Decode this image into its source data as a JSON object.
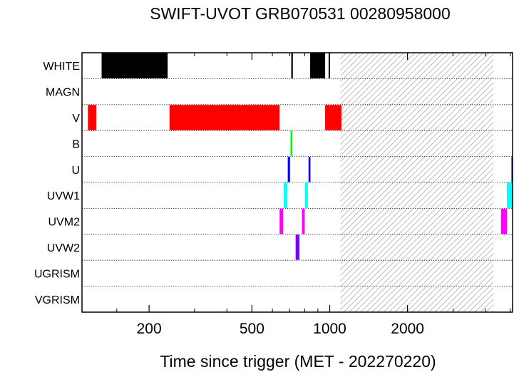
{
  "chart_data": {
    "type": "bar",
    "title": "SWIFT-UVOT GRB070531 00280958000",
    "xlabel": "Time since trigger (MET - 202270220)",
    "ylabel": "",
    "x_scale": "log",
    "xlim": [
      110,
      5100
    ],
    "x_ticks": [
      {
        "value": 200,
        "label": "200"
      },
      {
        "value": 500,
        "label": "500"
      },
      {
        "value": 1000,
        "label": "1000"
      },
      {
        "value": 2000,
        "label": "2000"
      }
    ],
    "x_minor_ticks": [
      150,
      300,
      400,
      600,
      700,
      800,
      900,
      3000,
      4000,
      5000
    ],
    "categories": [
      "WHITE",
      "MAGN",
      "V",
      "B",
      "U",
      "UVW1",
      "UVM2",
      "UVW2",
      "UGRISM",
      "VGRISM"
    ],
    "grid": "dotted horizontal separators",
    "shaded_region": {
      "x_start": 1100,
      "x_end": 4300,
      "pattern": "diagonal hatch",
      "color": "#b0b0b0"
    },
    "series": [
      {
        "filter": "WHITE",
        "color": "#000000",
        "intervals": [
          [
            131,
            236
          ],
          [
            710,
            720
          ],
          [
            840,
            960
          ],
          [
            990,
            1000
          ]
        ]
      },
      {
        "filter": "V",
        "color": "#ff0000",
        "intervals": [
          [
            116,
            125
          ],
          [
            240,
            640
          ],
          [
            960,
            1110
          ]
        ]
      },
      {
        "filter": "B",
        "color": "#00ff00",
        "intervals": [
          [
            705,
            717
          ]
        ]
      },
      {
        "filter": "U",
        "color": "#0000ff",
        "intervals": [
          [
            688,
            702
          ],
          [
            828,
            842
          ],
          [
            5050,
            5100
          ]
        ]
      },
      {
        "filter": "UVW1",
        "color": "#00ffff",
        "intervals": [
          [
            664,
            684
          ],
          [
            803,
            823
          ],
          [
            4850,
            5080
          ]
        ]
      },
      {
        "filter": "UVM2",
        "color": "#ff00ff",
        "intervals": [
          [
            640,
            660
          ],
          [
            781,
            800
          ],
          [
            4600,
            4850
          ]
        ]
      },
      {
        "filter": "UVW2",
        "color": "#7f00ff",
        "intervals": [
          [
            738,
            764
          ]
        ]
      }
    ]
  }
}
